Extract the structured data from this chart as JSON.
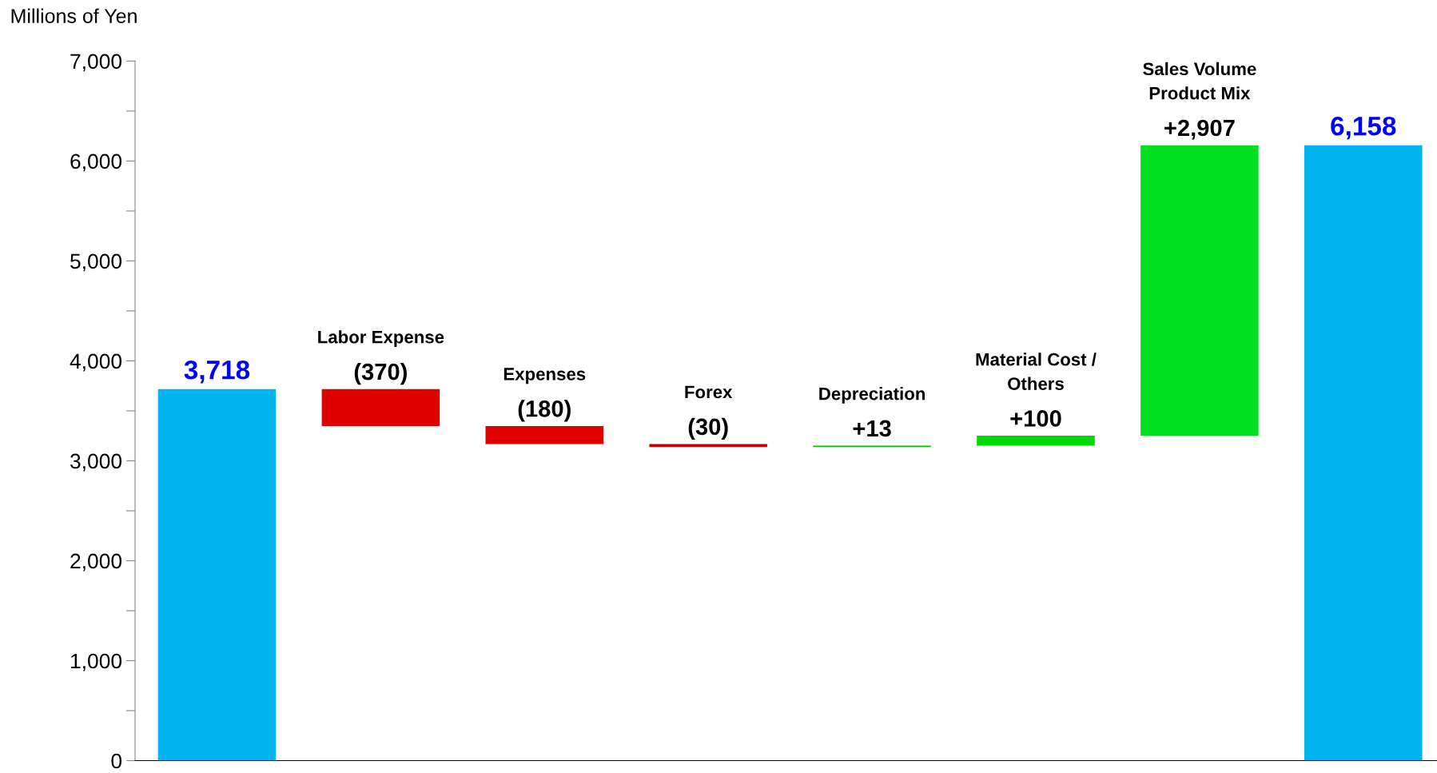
{
  "chart_data": {
    "type": "bar",
    "ylabel": "Millions of Yen",
    "categories": [
      null,
      "Labor Expense",
      "Expenses",
      "Forex",
      "Depreciation",
      "Material Cost /\nOthers",
      "Sales Volume\nProduct Mix",
      null
    ],
    "values": [
      3718,
      -370,
      -180,
      -30,
      13,
      100,
      2907,
      6158
    ],
    "base": [
      0,
      3718,
      3348,
      3168,
      3138,
      3151,
      3251,
      0
    ],
    "colors": [
      "#00b4f0",
      "#e00000",
      "#e00000",
      "#c00000",
      "#00c000",
      "#00d800",
      "#00e020",
      "#00b4f0"
    ],
    "value_labels": [
      "3,718",
      "(370)",
      "(180)",
      "(30)",
      "+13",
      "+100",
      "+2,907",
      "6,158"
    ],
    "ylim": [
      0,
      7000
    ],
    "yticks": [
      0,
      {
        "value": 500,
        "label": null
      },
      {
        "value": 1000,
        "label": "1,000"
      },
      {
        "value": 1500,
        "label": null
      },
      {
        "value": 2000,
        "label": "2,000"
      },
      {
        "value": 2500,
        "label": null
      },
      {
        "value": 3000,
        "label": "3,000"
      },
      {
        "value": 3500,
        "label": null
      },
      {
        "value": 4000,
        "label": "4,000"
      },
      {
        "value": 4500,
        "label": null
      },
      {
        "value": 5000,
        "label": "5,000"
      },
      {
        "value": 5500,
        "label": null
      },
      {
        "value": 6000,
        "label": "6,000"
      },
      {
        "value": 6500,
        "label": null
      },
      {
        "value": 7000,
        "label": "7,000"
      }
    ],
    "tick_labels": "y",
    "grid": false,
    "legend": false
  }
}
